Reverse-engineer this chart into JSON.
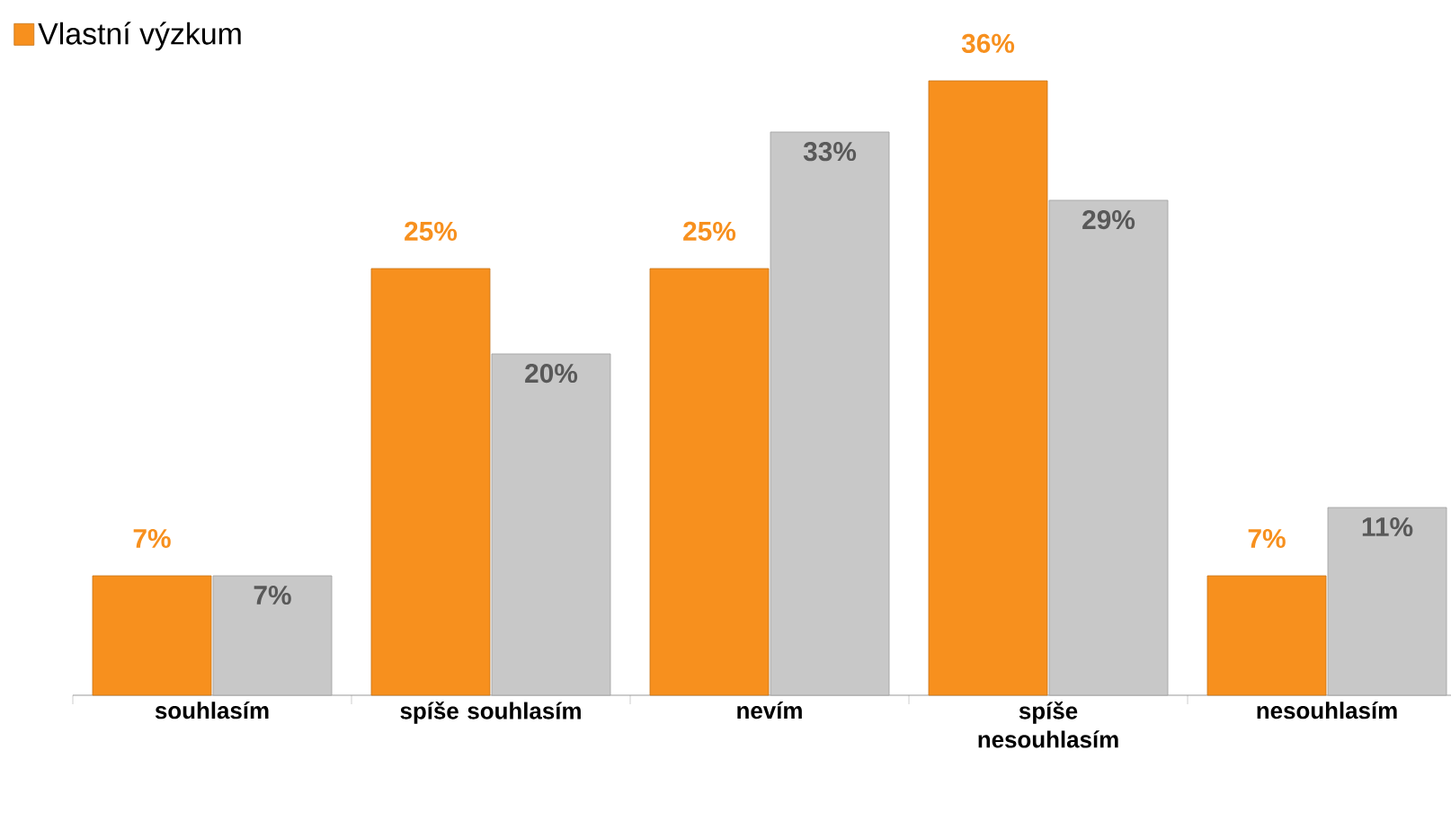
{
  "chart_data": {
    "type": "bar",
    "categories": [
      "souhlasím",
      "spíše souhlasím",
      "nevím",
      "spíše nesouhlasím",
      "nesouhlasím"
    ],
    "series": [
      {
        "name": "Vlastní výzkum",
        "color": "#f7901e",
        "values": [
          7,
          25,
          25,
          36,
          7
        ],
        "value_labels": [
          "7%",
          "25%",
          "25%",
          "36%",
          "7%"
        ]
      },
      {
        "color": "#c8c8c8",
        "values": [
          7,
          20,
          33,
          29,
          11
        ],
        "value_labels": [
          "7%",
          "20%",
          "33%",
          "29%",
          "11%"
        ]
      }
    ],
    "legend": "top left"
  }
}
